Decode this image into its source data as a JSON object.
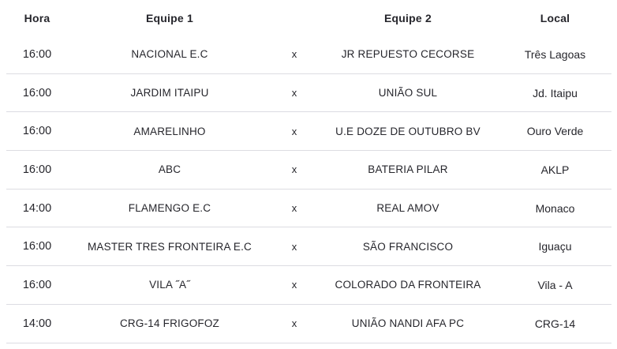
{
  "table": {
    "header": {
      "hora": "Hora",
      "equipe1": "Equipe 1",
      "vs": "",
      "equipe2": "Equipe 2",
      "local": "Local"
    },
    "rows": [
      {
        "hora": "16:00",
        "equipe1": "NACIONAL E.C",
        "vs": "x",
        "equipe2": "JR REPUESTO CECORSE",
        "local": "Três Lagoas"
      },
      {
        "hora": "16:00",
        "equipe1": "JARDIM ITAIPU",
        "vs": "x",
        "equipe2": "UNIÃO SUL",
        "local": "Jd. Itaipu"
      },
      {
        "hora": "16:00",
        "equipe1": "AMARELINHO",
        "vs": "x",
        "equipe2": "U.E DOZE DE OUTUBRO BV",
        "local": "Ouro Verde"
      },
      {
        "hora": "16:00",
        "equipe1": "ABC",
        "vs": "x",
        "equipe2": "BATERIA PILAR",
        "local": "AKLP"
      },
      {
        "hora": "14:00",
        "equipe1": "FLAMENGO E.C",
        "vs": "x",
        "equipe2": "REAL AMOV",
        "local": "Monaco"
      },
      {
        "hora": "16:00",
        "equipe1": "MASTER TRES FRONTEIRA E.C",
        "vs": "x",
        "equipe2": "SÃO FRANCISCO",
        "local": "Iguaçu"
      },
      {
        "hora": "16:00",
        "equipe1": "VILA ˝A˝",
        "vs": "x",
        "equipe2": "COLORADO DA FRONTEIRA",
        "local": "Vila - A"
      },
      {
        "hora": "14:00",
        "equipe1": "CRG-14 FRIGOFOZ",
        "vs": "x",
        "equipe2": "UNIÃO NANDI AFA PC",
        "local": "CRG-14"
      }
    ]
  },
  "colors": {
    "text": "#26262c",
    "divider": "#dcdce2",
    "background": "#ffffff"
  }
}
